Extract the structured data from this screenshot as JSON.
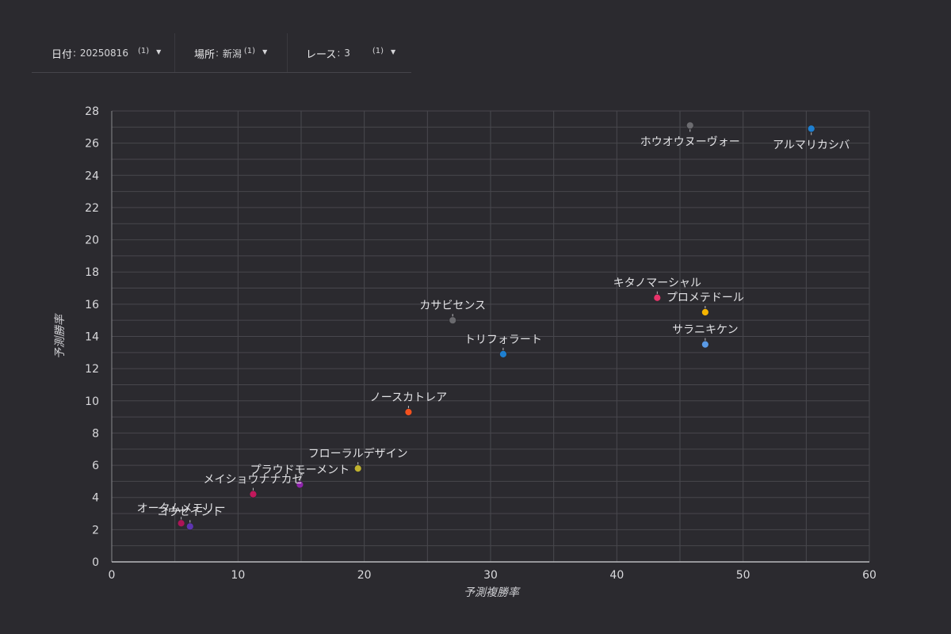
{
  "filters": [
    {
      "label": "日付",
      "value": "20250816",
      "count": "(1)"
    },
    {
      "label": "場所",
      "value": "新潟",
      "count": "(1)"
    },
    {
      "label": "レース",
      "value": "3",
      "count": "(1)"
    }
  ],
  "chart_data": {
    "type": "scatter",
    "xlabel": "予測複勝率",
    "ylabel": "予測勝率",
    "xlim": [
      0,
      60
    ],
    "ylim": [
      0,
      28
    ],
    "x_ticks": [
      0,
      10,
      20,
      30,
      40,
      50,
      60
    ],
    "y_ticks": [
      0,
      2,
      4,
      6,
      8,
      10,
      12,
      14,
      16,
      18,
      20,
      22,
      24,
      26,
      28
    ],
    "grid": true,
    "points": [
      {
        "label": "アルマリカシバ",
        "x": 55.4,
        "y": 26.9,
        "color": "#1e7fd0",
        "label_pos": "below"
      },
      {
        "label": "ホウオウヌーヴォー",
        "x": 45.8,
        "y": 27.1,
        "color": "#6c6c70",
        "label_pos": "below"
      },
      {
        "label": "キタノマーシャル",
        "x": 43.2,
        "y": 16.4,
        "color": "#e8336a",
        "label_pos": "above"
      },
      {
        "label": "プロメテドール",
        "x": 47.0,
        "y": 15.5,
        "color": "#f5b400",
        "label_pos": "above"
      },
      {
        "label": "サラニキケン",
        "x": 47.0,
        "y": 13.5,
        "color": "#5a9ae6",
        "label_pos": "above"
      },
      {
        "label": "カサビセンス",
        "x": 27.0,
        "y": 15.0,
        "color": "#6a6a6e",
        "label_pos": "above"
      },
      {
        "label": "トリフォラート",
        "x": 31.0,
        "y": 12.9,
        "color": "#1e7fd0",
        "label_pos": "above"
      },
      {
        "label": "ノースカトレア",
        "x": 23.5,
        "y": 9.3,
        "color": "#f4511e",
        "label_pos": "above"
      },
      {
        "label": "フローラルデザイン",
        "x": 19.5,
        "y": 5.8,
        "color": "#c0b22e",
        "label_pos": "above"
      },
      {
        "label": "プラウドモーメント",
        "x": 14.9,
        "y": 4.8,
        "color": "#8e24aa",
        "label_pos": "above"
      },
      {
        "label": "メイショウナナカゼ",
        "x": 11.2,
        "y": 4.2,
        "color": "#c2185b",
        "label_pos": "above"
      },
      {
        "label": "オータムメモリー",
        "x": 5.5,
        "y": 2.4,
        "color": "#ad1457",
        "label_pos": "above"
      },
      {
        "label": "コウセイント",
        "x": 6.2,
        "y": 2.2,
        "color": "#5e35b1",
        "label_pos": "above"
      }
    ]
  }
}
